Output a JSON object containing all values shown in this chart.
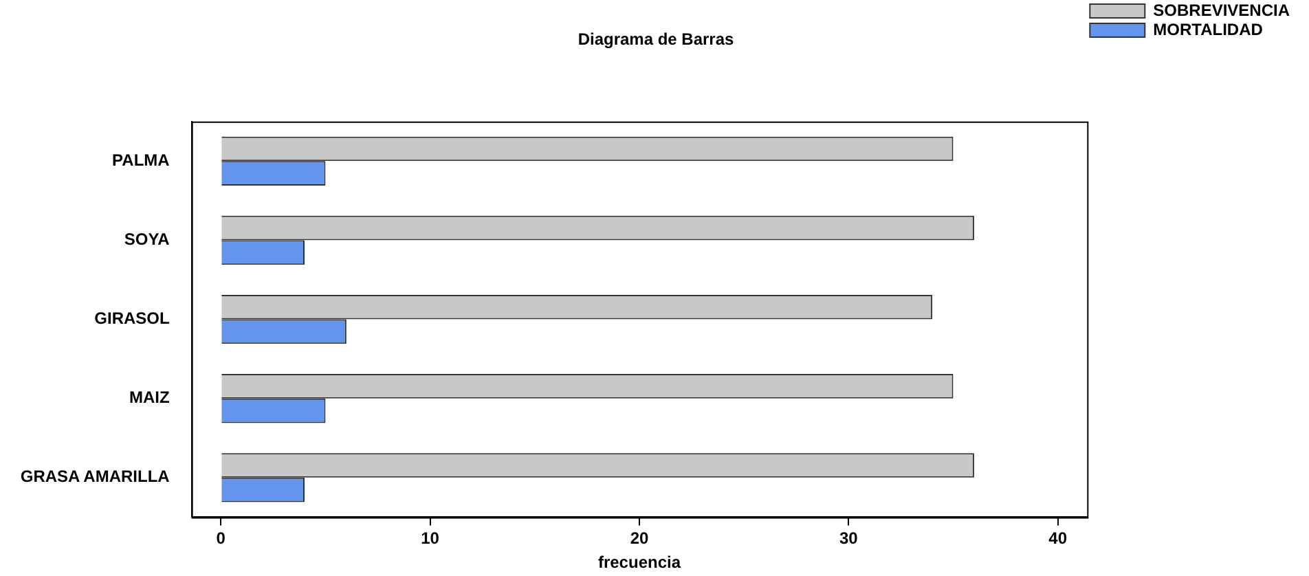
{
  "chart_data": {
    "type": "bar",
    "orientation": "horizontal",
    "title": "Diagrama de Barras",
    "xlabel": "frecuencia",
    "categories": [
      "PALMA",
      "SOYA",
      "GIRASOL",
      "MAIZ",
      "GRASA AMARILLA"
    ],
    "series": [
      {
        "name": "SOBREVIVENCIA",
        "color": "#c8c8c8",
        "values": [
          35,
          36,
          34,
          35,
          36
        ]
      },
      {
        "name": "MORTALIDAD",
        "color": "#6495ed",
        "values": [
          5,
          4,
          6,
          5,
          4
        ]
      }
    ],
    "xlim": [
      -1.4,
      41.4
    ],
    "xticks": [
      0,
      10,
      20,
      30,
      40
    ],
    "grid": false,
    "legend": "top right"
  }
}
